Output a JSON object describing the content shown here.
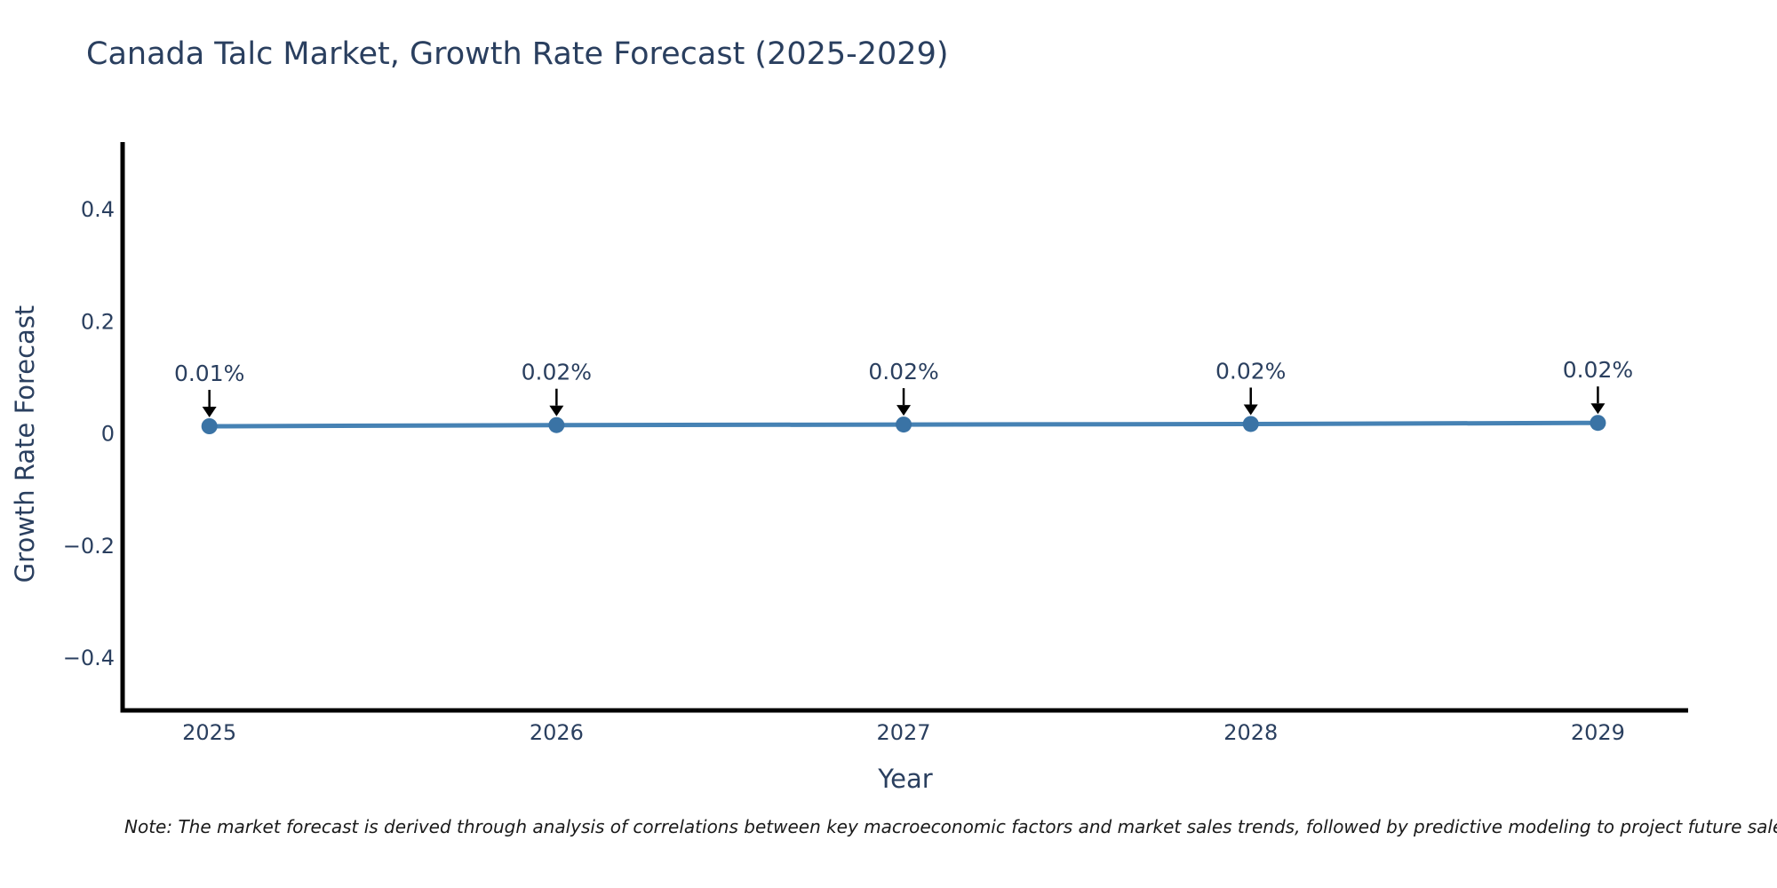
{
  "chart_data": {
    "type": "line",
    "title": "Canada Talc Market, Growth Rate Forecast (2025-2029)",
    "xlabel": "Year",
    "ylabel": "Growth Rate Forecast",
    "x": [
      2025,
      2026,
      2027,
      2028,
      2029
    ],
    "xtick_labels": [
      "2025",
      "2026",
      "2027",
      "2028",
      "2029"
    ],
    "values": [
      0.013,
      0.015,
      0.016,
      0.017,
      0.019
    ],
    "point_labels": [
      "0.01%",
      "0.02%",
      "0.02%",
      "0.02%",
      "0.02%"
    ],
    "yticks": [
      -0.4,
      -0.2,
      0,
      0.2,
      0.4
    ],
    "ytick_labels": [
      "−0.4",
      "−0.2",
      "0",
      "0.2",
      "0.4"
    ],
    "xlim": [
      2024.75,
      2029.26
    ],
    "ylim": [
      -0.494,
      0.52
    ],
    "grid": false,
    "legend": "none",
    "line_color": "#4682b4",
    "marker_color": "#3a73a5",
    "axis_color": "#000000",
    "text_color": "#2a3f5f",
    "annotation_arrow_color": "#000000",
    "note": "Note: The market forecast is derived through analysis of correlations between key macroeconomic factors and market sales trends, followed by predictive modeling to project future sales."
  }
}
